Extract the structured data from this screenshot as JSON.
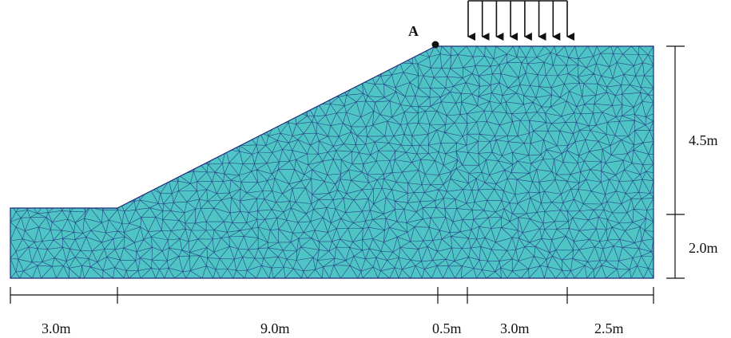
{
  "diagram": {
    "point_label": "A",
    "mesh_fill": "#4fc4c4",
    "mesh_line": "#1f2a7a",
    "line_color": "#111111",
    "horizontal_dimensions": [
      "3.0m",
      "9.0m",
      "0.5m",
      "3.0m",
      "2.5m"
    ],
    "vertical_dimensions": [
      "4.5m",
      "2.0m"
    ]
  }
}
